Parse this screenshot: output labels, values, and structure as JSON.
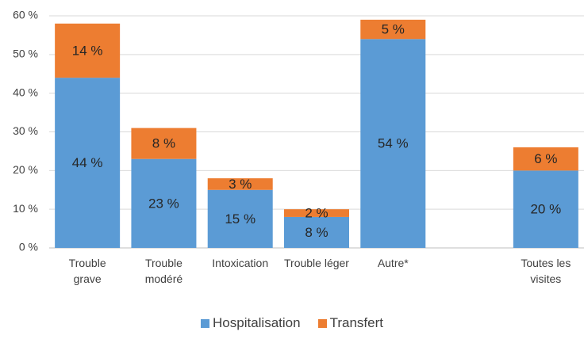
{
  "chart_data": {
    "type": "stacked_bar",
    "categories": [
      "Trouble grave",
      "Trouble modéré",
      "Intoxication",
      "Trouble léger",
      "Autre*",
      null,
      "Toutes les visites"
    ],
    "series": [
      {
        "name": "Hospitalisation",
        "color": "#5b9bd5",
        "values": [
          44,
          23,
          15,
          8,
          54,
          null,
          20
        ],
        "value_labels": [
          "44 %",
          "23 %",
          "15 %",
          "8 %",
          "54 %",
          null,
          "20 %"
        ]
      },
      {
        "name": "Transfert",
        "color": "#ed7d31",
        "values": [
          14,
          8,
          3,
          2,
          5,
          null,
          6
        ],
        "value_labels": [
          "14 %",
          "8 %",
          "3 %",
          "2 %",
          "5 %",
          null,
          "6 %"
        ]
      }
    ],
    "ylim": [
      0,
      60
    ],
    "yticks": [
      {
        "value": 0,
        "label": "0 %"
      },
      {
        "value": 10,
        "label": "10 %"
      },
      {
        "value": 20,
        "label": "20 %"
      },
      {
        "value": 30,
        "label": "30 %"
      },
      {
        "value": 40,
        "label": "40 %"
      },
      {
        "value": 50,
        "label": "50 %"
      },
      {
        "value": 60,
        "label": "60 %"
      }
    ],
    "grid": true,
    "legend": "bottom"
  }
}
